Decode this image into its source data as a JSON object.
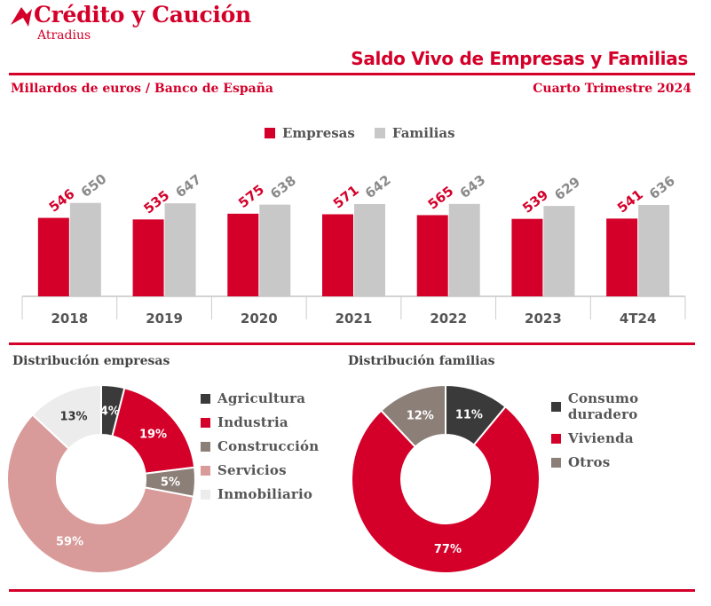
{
  "brand": {
    "name": "Crédito y Caución",
    "sub": "Atradius"
  },
  "header": {
    "title": "Saldo Vivo de Empresas y Familias",
    "subtitle_left": "Millardos de euros / Banco de España",
    "subtitle_right": "Cuarto Trimestre  2024"
  },
  "colors": {
    "accent": "#d4002a",
    "grey": "#c8c8c8"
  },
  "chart_data": [
    {
      "type": "bar",
      "categories": [
        "2018",
        "2019",
        "2020",
        "2021",
        "2022",
        "2023",
        "4T24"
      ],
      "series": [
        {
          "name": "Empresas",
          "values": [
            546,
            535,
            575,
            571,
            565,
            539,
            541
          ],
          "color": "#d4002a"
        },
        {
          "name": "Familias",
          "values": [
            650,
            647,
            638,
            642,
            643,
            629,
            636
          ],
          "color": "#c8c8c8"
        }
      ],
      "legend": "top-center",
      "grid": false
    },
    {
      "type": "pie",
      "title": "Distribución  empresas",
      "labels": [
        "Agricultura",
        "Industria",
        "Construcción",
        "Servicios",
        "Inmobiliario"
      ],
      "values": [
        4,
        19,
        5,
        59,
        13
      ],
      "value_labels": [
        "4%",
        "19%",
        "5%",
        "59%",
        "13%"
      ],
      "colors": [
        "#3a3a3a",
        "#d4002a",
        "#8c7f78",
        "#d99a9a",
        "#ececec"
      ],
      "legend": "right"
    },
    {
      "type": "pie",
      "title": "Distribución  familias",
      "labels": [
        "Consumo duradero",
        "Vivienda",
        "Otros"
      ],
      "values": [
        11,
        77,
        12
      ],
      "value_labels": [
        "11%",
        "77%",
        "12%"
      ],
      "colors": [
        "#3a3a3a",
        "#d4002a",
        "#8c7f78"
      ],
      "legend": "right"
    }
  ]
}
